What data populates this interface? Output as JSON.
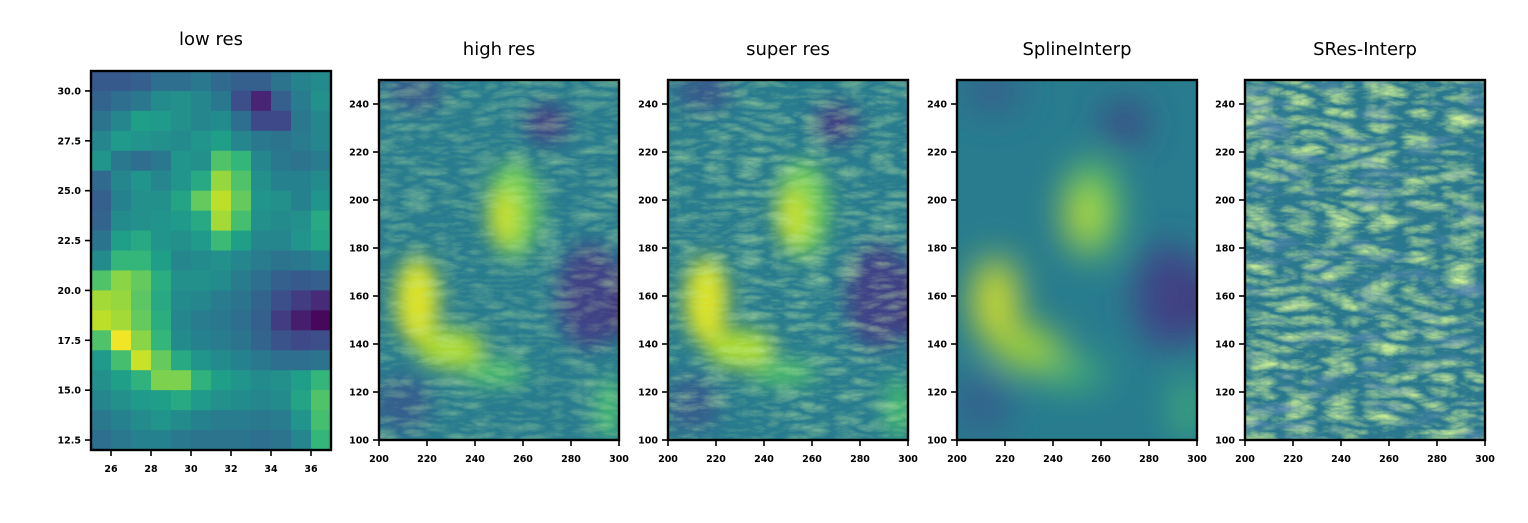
{
  "chart_data": [
    {
      "type": "heatmap",
      "title": "low res",
      "colormap": "viridis",
      "xlim": [
        25,
        37
      ],
      "ylim": [
        12,
        31
      ],
      "x_ticks": [
        "26",
        "28",
        "30",
        "32",
        "34",
        "36"
      ],
      "y_ticks": [
        "12.5",
        "15.0",
        "17.5",
        "20.0",
        "22.5",
        "25.0",
        "27.5",
        "30.0"
      ],
      "grid": false,
      "columns": 12,
      "rows": 19,
      "values_top_to_bottom": [
        [
          0.28,
          0.28,
          0.3,
          0.36,
          0.36,
          0.4,
          0.34,
          0.3,
          0.3,
          0.38,
          0.45,
          0.48
        ],
        [
          0.32,
          0.36,
          0.4,
          0.48,
          0.5,
          0.46,
          0.4,
          0.24,
          0.1,
          0.3,
          0.42,
          0.5
        ],
        [
          0.38,
          0.46,
          0.56,
          0.54,
          0.5,
          0.46,
          0.48,
          0.36,
          0.22,
          0.22,
          0.4,
          0.46
        ],
        [
          0.46,
          0.54,
          0.52,
          0.5,
          0.48,
          0.52,
          0.56,
          0.46,
          0.4,
          0.38,
          0.42,
          0.46
        ],
        [
          0.52,
          0.4,
          0.36,
          0.4,
          0.52,
          0.5,
          0.72,
          0.66,
          0.46,
          0.4,
          0.38,
          0.42
        ],
        [
          0.34,
          0.46,
          0.52,
          0.46,
          0.52,
          0.6,
          0.84,
          0.72,
          0.5,
          0.44,
          0.44,
          0.48
        ],
        [
          0.3,
          0.44,
          0.5,
          0.5,
          0.58,
          0.76,
          0.9,
          0.76,
          0.52,
          0.5,
          0.44,
          0.52
        ],
        [
          0.32,
          0.48,
          0.5,
          0.52,
          0.54,
          0.6,
          0.86,
          0.7,
          0.5,
          0.48,
          0.5,
          0.6
        ],
        [
          0.38,
          0.56,
          0.6,
          0.52,
          0.5,
          0.54,
          0.68,
          0.56,
          0.46,
          0.46,
          0.52,
          0.58
        ],
        [
          0.48,
          0.66,
          0.66,
          0.56,
          0.46,
          0.48,
          0.5,
          0.46,
          0.42,
          0.38,
          0.4,
          0.44
        ],
        [
          0.72,
          0.82,
          0.76,
          0.62,
          0.5,
          0.5,
          0.48,
          0.42,
          0.36,
          0.3,
          0.28,
          0.3
        ],
        [
          0.86,
          0.84,
          0.74,
          0.6,
          0.48,
          0.46,
          0.42,
          0.38,
          0.32,
          0.24,
          0.18,
          0.12
        ],
        [
          0.9,
          0.86,
          0.76,
          0.62,
          0.46,
          0.42,
          0.4,
          0.36,
          0.3,
          0.18,
          0.08,
          0.02
        ],
        [
          0.72,
          0.98,
          0.82,
          0.66,
          0.48,
          0.44,
          0.42,
          0.38,
          0.32,
          0.26,
          0.22,
          0.24
        ],
        [
          0.54,
          0.7,
          0.92,
          0.76,
          0.6,
          0.52,
          0.48,
          0.44,
          0.4,
          0.36,
          0.36,
          0.38
        ],
        [
          0.5,
          0.56,
          0.64,
          0.8,
          0.8,
          0.64,
          0.56,
          0.52,
          0.48,
          0.5,
          0.56,
          0.66
        ],
        [
          0.46,
          0.5,
          0.54,
          0.56,
          0.6,
          0.54,
          0.5,
          0.48,
          0.46,
          0.48,
          0.58,
          0.72
        ],
        [
          0.4,
          0.44,
          0.48,
          0.52,
          0.48,
          0.44,
          0.42,
          0.42,
          0.4,
          0.42,
          0.52,
          0.7
        ],
        [
          0.36,
          0.4,
          0.44,
          0.44,
          0.4,
          0.38,
          0.38,
          0.38,
          0.36,
          0.38,
          0.46,
          0.66
        ]
      ]
    },
    {
      "type": "heatmap",
      "title": "high res",
      "colormap": "viridis",
      "xlim": [
        200,
        300
      ],
      "ylim": [
        100,
        250
      ],
      "x_ticks": [
        "200",
        "220",
        "240",
        "260",
        "280",
        "300"
      ],
      "y_ticks": [
        "100",
        "120",
        "140",
        "160",
        "180",
        "200",
        "220",
        "240"
      ],
      "grid": false
    },
    {
      "type": "heatmap",
      "title": "super res",
      "colormap": "viridis",
      "xlim": [
        200,
        300
      ],
      "ylim": [
        100,
        250
      ],
      "x_ticks": [
        "200",
        "220",
        "240",
        "260",
        "280",
        "300"
      ],
      "y_ticks": [
        "100",
        "120",
        "140",
        "160",
        "180",
        "200",
        "220",
        "240"
      ],
      "grid": false
    },
    {
      "type": "heatmap",
      "title": "SplineInterp",
      "colormap": "viridis",
      "xlim": [
        200,
        300
      ],
      "ylim": [
        100,
        250
      ],
      "x_ticks": [
        "200",
        "220",
        "240",
        "260",
        "280",
        "300"
      ],
      "y_ticks": [
        "100",
        "120",
        "140",
        "160",
        "180",
        "200",
        "220",
        "240"
      ],
      "grid": false
    },
    {
      "type": "heatmap",
      "title": "SRes-Interp",
      "colormap": "viridis",
      "xlim": [
        200,
        300
      ],
      "ylim": [
        100,
        250
      ],
      "x_ticks": [
        "200",
        "220",
        "240",
        "260",
        "280",
        "300"
      ],
      "y_ticks": [
        "100",
        "120",
        "140",
        "160",
        "180",
        "200",
        "220",
        "240"
      ],
      "grid": false
    }
  ]
}
